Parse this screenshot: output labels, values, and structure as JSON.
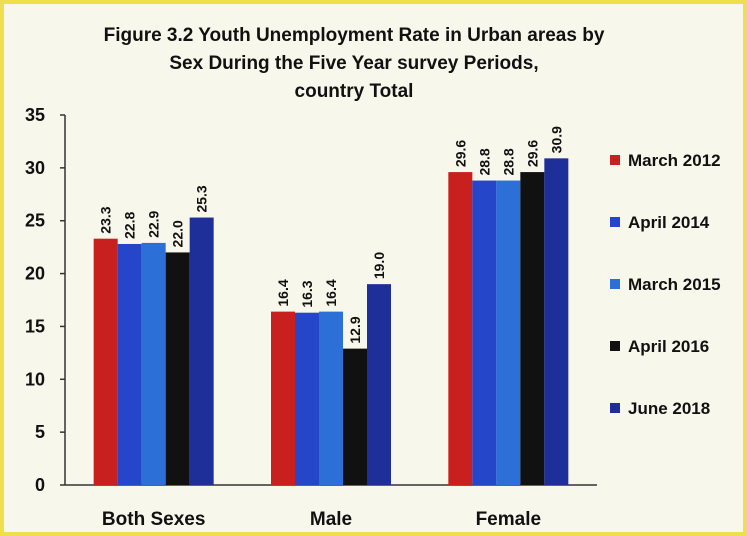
{
  "chart_data": {
    "type": "bar",
    "title": "Figure 3.2 Youth Unemployment Rate in Urban areas by Sex During the Five Year survey Periods, country Total",
    "title_lines": [
      "Figure 3.2 Youth Unemployment Rate in Urban areas by",
      "Sex During the Five Year survey Periods,",
      "country Total"
    ],
    "categories": [
      "Both Sexes",
      "Male",
      "Female"
    ],
    "series": [
      {
        "name": "March 2012",
        "values": [
          23.3,
          16.4,
          29.6
        ],
        "color": "#c8201e"
      },
      {
        "name": "April 2014",
        "values": [
          22.8,
          16.3,
          28.8
        ],
        "color": "#2546c8"
      },
      {
        "name": "March 2015",
        "values": [
          22.9,
          16.4,
          28.8
        ],
        "color": "#2c6fd6"
      },
      {
        "name": "April 2016",
        "values": [
          22.0,
          12.9,
          29.6
        ],
        "color": "#111111"
      },
      {
        "name": "June 2018",
        "values": [
          25.3,
          19.0,
          30.9
        ],
        "color": "#1f2f9a"
      }
    ],
    "yticks": [
      0,
      5,
      10,
      15,
      20,
      25,
      30,
      35
    ],
    "ylim": [
      0,
      35
    ],
    "xlabel": "",
    "ylabel": "",
    "legend_position": "right",
    "grid": false
  }
}
